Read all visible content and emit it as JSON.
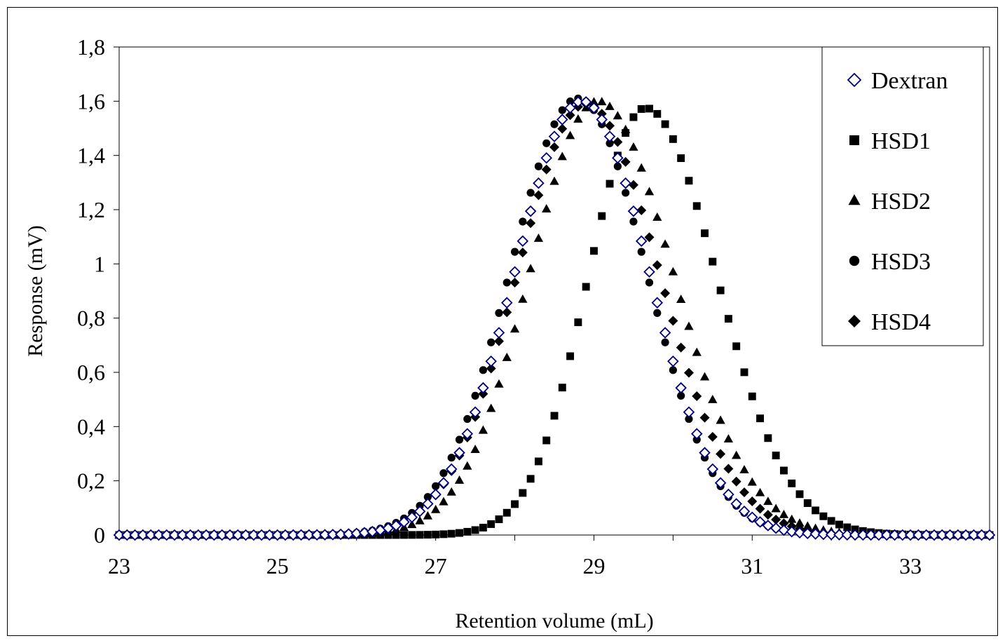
{
  "chart_data": {
    "type": "scatter",
    "title": "",
    "xlabel": "Retention volume (mL)",
    "ylabel": "Response (mV)",
    "xlim": [
      23,
      34
    ],
    "ylim": [
      0,
      1.8
    ],
    "x_ticks": [
      "23",
      "25",
      "27",
      "29",
      "31",
      "33"
    ],
    "x_tick_values": [
      23,
      25,
      27,
      29,
      31,
      33
    ],
    "y_ticks": [
      "0",
      "0,2",
      "0,4",
      "0,6",
      "0,8",
      "1",
      "1,2",
      "1,4",
      "1,6",
      "1,8"
    ],
    "y_tick_values": [
      0,
      0.2,
      0.4,
      0.6,
      0.8,
      1.0,
      1.2,
      1.4,
      1.6,
      1.8
    ],
    "grid": false,
    "legend_position": "top-right",
    "x_step": 0.1,
    "series": [
      {
        "name": "Dextran",
        "marker": "diamond-open",
        "color": "#000080",
        "peak_x": 28.85,
        "peak_y": 1.6,
        "sigma_left": 0.85,
        "sigma_right": 0.85
      },
      {
        "name": "HSD1",
        "marker": "square",
        "color": "#000000",
        "peak_x": 29.65,
        "peak_y": 1.575,
        "sigma_left": 0.72,
        "sigma_right": 0.9
      },
      {
        "name": "HSD2",
        "marker": "triangle",
        "color": "#000000",
        "peak_x": 29.05,
        "peak_y": 1.6,
        "sigma_left": 0.86,
        "sigma_right": 0.95
      },
      {
        "name": "HSD3",
        "marker": "circle",
        "color": "#000000",
        "peak_x": 28.8,
        "peak_y": 1.61,
        "sigma_left": 0.86,
        "sigma_right": 0.86
      },
      {
        "name": "HSD4",
        "marker": "diamond",
        "color": "#000000",
        "peak_x": 28.9,
        "peak_y": 1.59,
        "sigma_left": 0.87,
        "sigma_right": 0.93
      }
    ]
  }
}
